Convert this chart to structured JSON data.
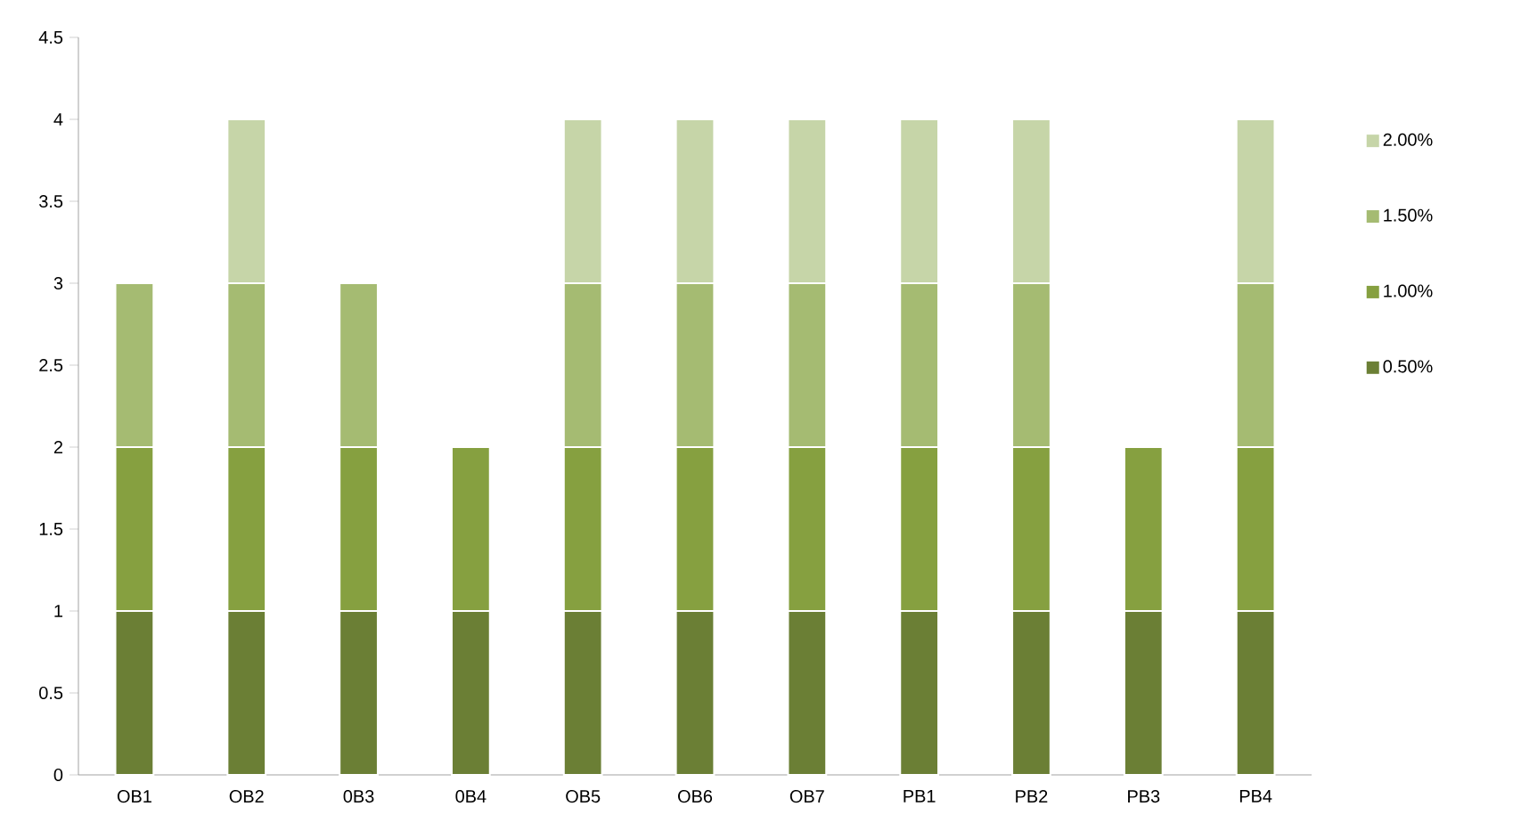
{
  "chart_data": {
    "type": "bar",
    "stacked": true,
    "categories": [
      "OB1",
      "OB2",
      "0B3",
      "0B4",
      "OB5",
      "OB6",
      "OB7",
      "PB1",
      "PB2",
      "PB3",
      "PB4"
    ],
    "series": [
      {
        "name": "0.50%",
        "color": "#6b7f35",
        "values": [
          1,
          1,
          1,
          1,
          1,
          1,
          1,
          1,
          1,
          1,
          1
        ]
      },
      {
        "name": "1.00%",
        "color": "#86a040",
        "values": [
          1,
          1,
          1,
          1,
          1,
          1,
          1,
          1,
          1,
          1,
          1
        ]
      },
      {
        "name": "1.50%",
        "color": "#a5bb72",
        "values": [
          1,
          1,
          1,
          null,
          1,
          1,
          1,
          1,
          1,
          null,
          1
        ]
      },
      {
        "name": "2.00%",
        "color": "#c6d5a8",
        "values": [
          null,
          1,
          null,
          null,
          1,
          1,
          1,
          1,
          1,
          null,
          1
        ]
      }
    ],
    "ylim": [
      0,
      4.5
    ],
    "yticks": [
      0,
      0.5,
      1,
      1.5,
      2,
      2.5,
      3,
      3.5,
      4,
      4.5
    ],
    "grid": false,
    "legend": "right"
  }
}
